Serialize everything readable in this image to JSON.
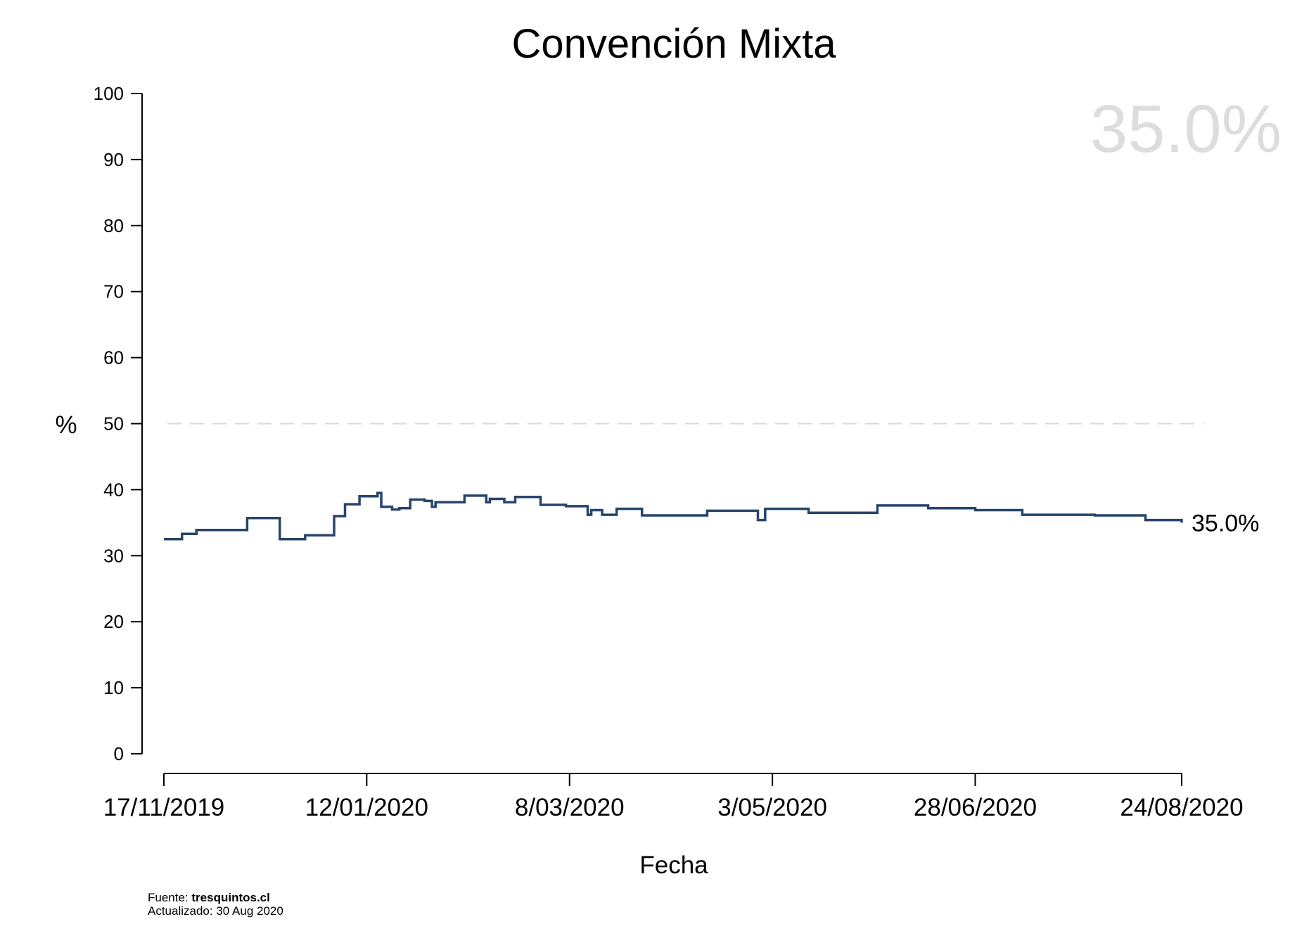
{
  "chart_data": {
    "type": "line",
    "title": "Convención Mixta",
    "xlabel": "Fecha",
    "ylabel": "%",
    "ylim": [
      0,
      100
    ],
    "yticks": [
      0,
      10,
      20,
      30,
      40,
      50,
      60,
      70,
      80,
      90,
      100
    ],
    "x_range": [
      "2019-11-17",
      "2020-08-24"
    ],
    "xticks": [
      {
        "date": "2019-11-17",
        "label": "17/11/2019"
      },
      {
        "date": "2020-01-12",
        "label": "12/01/2020"
      },
      {
        "date": "2020-03-08",
        "label": "8/03/2020"
      },
      {
        "date": "2020-05-03",
        "label": "3/05/2020"
      },
      {
        "date": "2020-06-28",
        "label": "28/06/2020"
      },
      {
        "date": "2020-08-24",
        "label": "24/08/2020"
      }
    ],
    "reference_line": {
      "y": 50,
      "style": "dashed",
      "color": "#d9d9d9"
    },
    "line_style": "step",
    "series": [
      {
        "color": "#27456a",
        "points": [
          [
            "2019-11-17",
            32.5
          ],
          [
            "2019-11-22",
            33.3
          ],
          [
            "2019-11-26",
            33.9
          ],
          [
            "2019-12-10",
            35.7
          ],
          [
            "2019-12-19",
            32.5
          ],
          [
            "2019-12-26",
            33.1
          ],
          [
            "2020-01-03",
            36.0
          ],
          [
            "2020-01-06",
            37.8
          ],
          [
            "2020-01-10",
            39.0
          ],
          [
            "2020-01-15",
            39.5
          ],
          [
            "2020-01-16",
            37.4
          ],
          [
            "2020-01-19",
            37.0
          ],
          [
            "2020-01-21",
            37.2
          ],
          [
            "2020-01-24",
            38.5
          ],
          [
            "2020-01-28",
            38.3
          ],
          [
            "2020-01-30",
            37.4
          ],
          [
            "2020-01-31",
            38.1
          ],
          [
            "2020-02-08",
            39.1
          ],
          [
            "2020-02-14",
            38.1
          ],
          [
            "2020-02-15",
            38.6
          ],
          [
            "2020-02-19",
            38.1
          ],
          [
            "2020-02-22",
            38.9
          ],
          [
            "2020-02-29",
            37.7
          ],
          [
            "2020-03-07",
            37.5
          ],
          [
            "2020-03-13",
            36.2
          ],
          [
            "2020-03-14",
            36.9
          ],
          [
            "2020-03-17",
            36.2
          ],
          [
            "2020-03-21",
            37.1
          ],
          [
            "2020-03-28",
            36.1
          ],
          [
            "2020-04-15",
            36.8
          ],
          [
            "2020-04-29",
            35.4
          ],
          [
            "2020-05-01",
            37.1
          ],
          [
            "2020-05-13",
            36.5
          ],
          [
            "2020-06-01",
            37.6
          ],
          [
            "2020-06-15",
            37.2
          ],
          [
            "2020-06-28",
            36.9
          ],
          [
            "2020-07-11",
            36.2
          ],
          [
            "2020-07-31",
            36.1
          ],
          [
            "2020-08-14",
            35.4
          ],
          [
            "2020-08-24",
            35.0
          ]
        ]
      }
    ],
    "end_label": "35.0%",
    "watermark_value": "35.0%"
  },
  "footer": {
    "source_label": "Fuente:",
    "source_value": "tresquintos.cl",
    "updated": "Actualizado: 30 Aug 2020"
  }
}
